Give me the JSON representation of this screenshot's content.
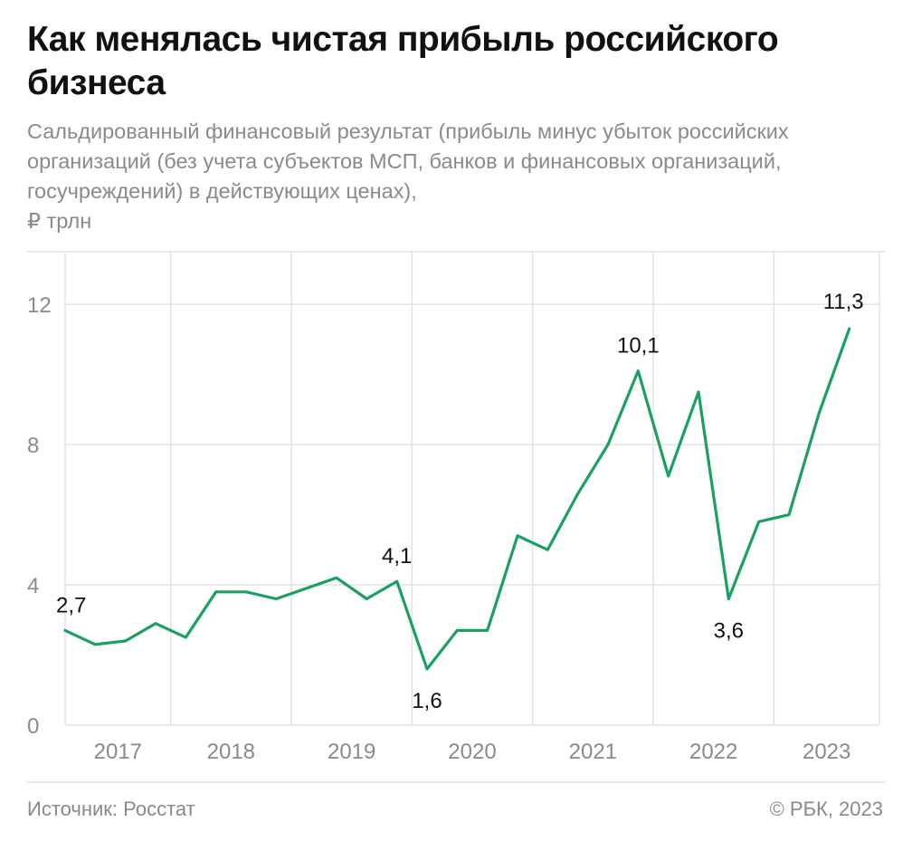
{
  "title": "Как менялась чистая прибыль российского бизнеса",
  "subtitle": "Сальдированный финансовый результат (прибыль минус убыток российских организаций (без учета субъектов МСП, банков и финансовых организаций, госучреждений) в действующих ценах),",
  "unit": "₽ трлн",
  "source": "Источник: Росстат",
  "copyright": "© РБК, 2023",
  "colors": {
    "line": "#1aa161",
    "grid": "#e3e3e3",
    "axis_text": "#8a8a8a",
    "title": "#111111"
  },
  "chart_data": {
    "type": "line",
    "x_unit": "quarter",
    "x": [
      "2017 Q1",
      "2017 Q2",
      "2017 Q3",
      "2017 Q4",
      "2018 Q1",
      "2018 Q2",
      "2018 Q3",
      "2018 Q4",
      "2019 Q1",
      "2019 Q2",
      "2019 Q3",
      "2019 Q4",
      "2020 Q1",
      "2020 Q2",
      "2020 Q3",
      "2020 Q4",
      "2021 Q1",
      "2021 Q2",
      "2021 Q3",
      "2021 Q4",
      "2022 Q1",
      "2022 Q2",
      "2022 Q3",
      "2022 Q4",
      "2023 Q1",
      "2023 Q2",
      "2023 Q3",
      "2023 Q4"
    ],
    "series": [
      {
        "name": "",
        "values": [
          2.7,
          2.3,
          2.4,
          2.9,
          2.5,
          3.8,
          3.8,
          3.6,
          3.9,
          4.2,
          3.6,
          4.1,
          1.6,
          2.7,
          2.7,
          5.4,
          5.0,
          6.6,
          8.0,
          10.1,
          7.1,
          9.5,
          3.6,
          5.8,
          6.0,
          8.9,
          11.3,
          null
        ]
      }
    ],
    "data_labels": [
      {
        "index": 0,
        "text": "2,7",
        "position": "above"
      },
      {
        "index": 11,
        "text": "4,1",
        "position": "above"
      },
      {
        "index": 12,
        "text": "1,6",
        "position": "below"
      },
      {
        "index": 19,
        "text": "10,1",
        "position": "above"
      },
      {
        "index": 22,
        "text": "3,6",
        "position": "below"
      },
      {
        "index": 26,
        "text": "11,3",
        "position": "above"
      }
    ],
    "year_labels": [
      "2017",
      "2018",
      "2019",
      "2020",
      "2021",
      "2022",
      "2023"
    ],
    "y_ticks": [
      0,
      4,
      8,
      12
    ],
    "y_tick_labels": [
      "0",
      "4",
      "8",
      "12"
    ],
    "ylim": [
      0,
      13.5
    ],
    "grid": true
  }
}
